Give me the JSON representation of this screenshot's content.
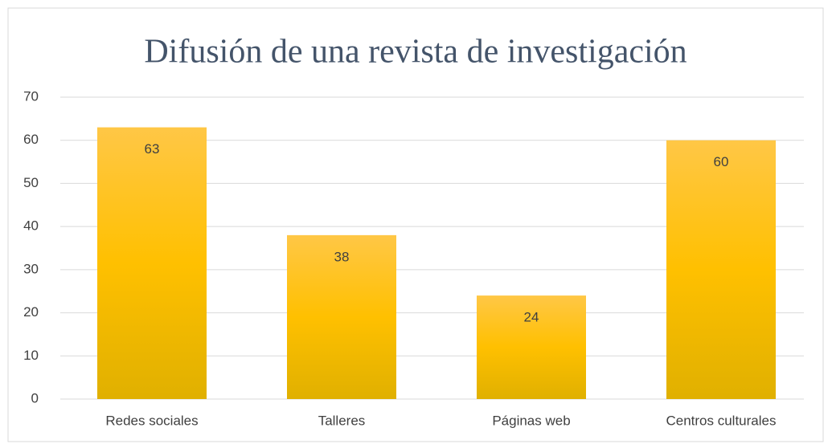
{
  "chart_data": {
    "type": "bar",
    "title": "Difusión de una revista de investigación",
    "categories": [
      "Redes sociales",
      "Talleres",
      "Páginas web",
      "Centros culturales"
    ],
    "values": [
      63,
      38,
      24,
      60
    ],
    "color": "#ffc000",
    "ylim": [
      0,
      70
    ],
    "yticks": [
      0,
      10,
      20,
      30,
      40,
      50,
      60,
      70
    ],
    "grid": true
  }
}
